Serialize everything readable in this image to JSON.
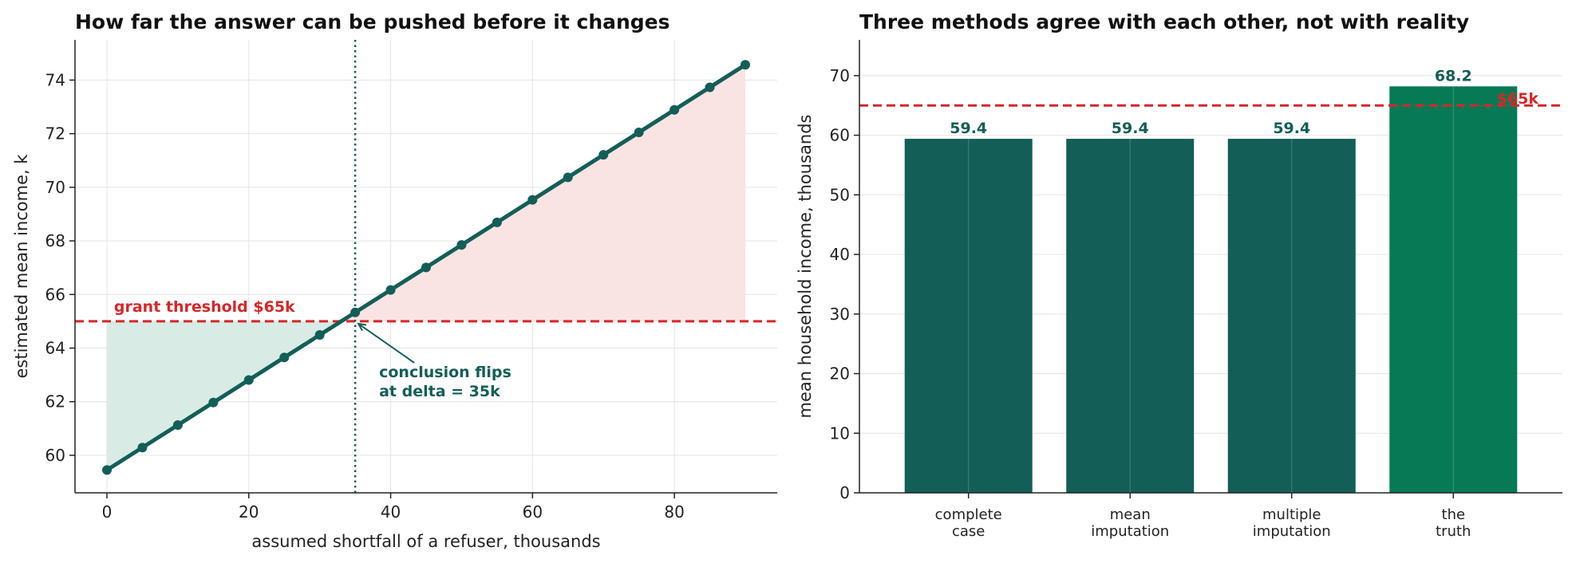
{
  "colors": {
    "line": "#135e57",
    "bar": "#135e57",
    "bar_truth": "#077a55",
    "threshold": "#d62728",
    "fill_below": "#d9ebe5",
    "fill_above": "#fae3e3"
  },
  "chart_data": [
    {
      "type": "line",
      "title": "How far the answer can be pushed before it changes",
      "xlabel": "assumed shortfall of a refuser, thousands",
      "ylabel": "estimated mean income, k",
      "xlim": [
        -4.5,
        94.5
      ],
      "ylim": [
        58.6,
        75.5
      ],
      "xticks": [
        0,
        20,
        40,
        60,
        80
      ],
      "yticks": [
        60,
        62,
        64,
        66,
        68,
        70,
        72,
        74
      ],
      "grid": true,
      "series": [
        {
          "x": [
            0,
            5,
            10,
            15,
            20,
            25,
            30,
            35,
            40,
            45,
            50,
            55,
            60,
            65,
            70,
            75,
            80,
            85,
            90
          ],
          "y": [
            59.45,
            60.29,
            61.13,
            61.97,
            62.81,
            63.65,
            64.49,
            65.33,
            66.17,
            67.01,
            67.85,
            68.69,
            69.53,
            70.37,
            71.21,
            72.05,
            72.89,
            73.73,
            74.57
          ]
        }
      ],
      "threshold": {
        "value": 65,
        "label": "grant threshold $65k"
      },
      "flip_line_x": 35,
      "annotation": {
        "lines": [
          "conclusion flips",
          "at delta = 35k"
        ],
        "point": [
          35,
          65
        ]
      }
    },
    {
      "type": "bar",
      "title": "Three methods agree with each other, not with reality",
      "xlabel": "",
      "ylabel": "mean household income, thousands",
      "ylim": [
        0,
        76
      ],
      "yticks": [
        0,
        10,
        20,
        30,
        40,
        50,
        60,
        70
      ],
      "grid": true,
      "categories": [
        [
          "complete",
          "case"
        ],
        [
          "mean",
          "imputation"
        ],
        [
          "multiple",
          "imputation"
        ],
        [
          "the",
          "truth"
        ]
      ],
      "values": [
        59.4,
        59.4,
        59.4,
        68.2
      ],
      "value_labels": [
        "59.4",
        "59.4",
        "59.4",
        "68.2"
      ],
      "threshold": {
        "value": 65,
        "label": "$65k"
      }
    }
  ]
}
